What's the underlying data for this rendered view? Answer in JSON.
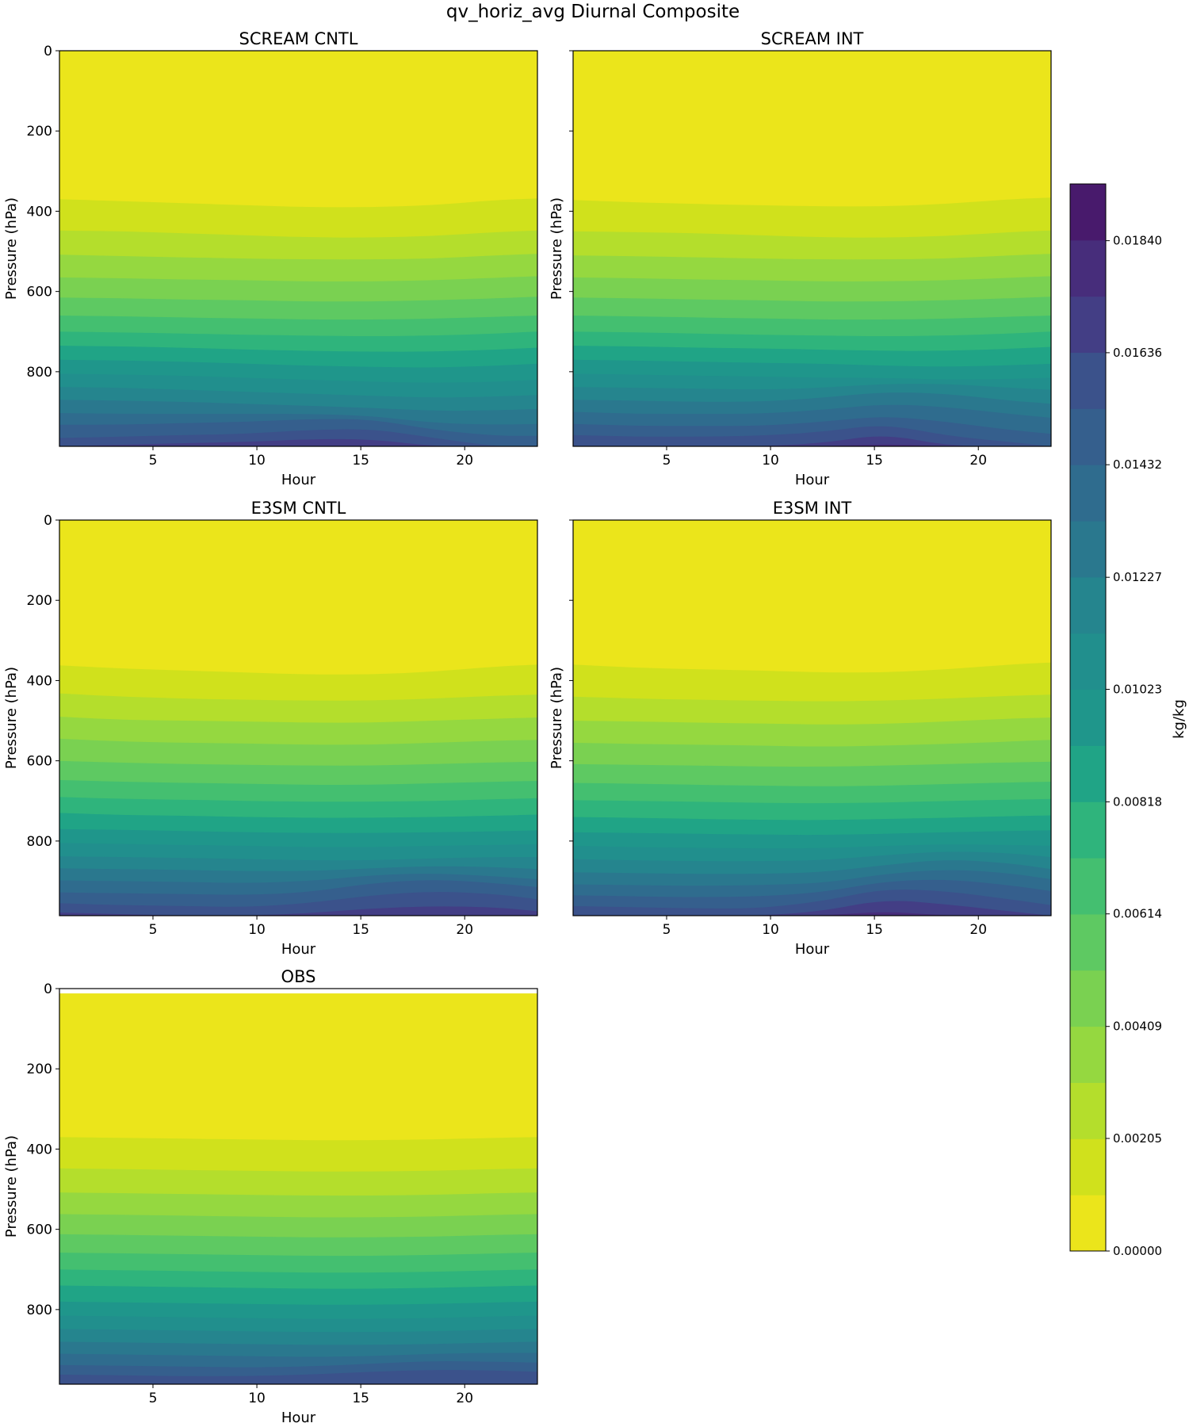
{
  "figure_title": "qv_horiz_avg Diurnal Composite",
  "colorbar": {
    "label": "kg/kg",
    "tick_labels": [
      "0.00000",
      "0.00205",
      "0.00409",
      "0.00614",
      "0.00818",
      "0.01023",
      "0.01227",
      "0.01432",
      "0.01636",
      "0.01840"
    ],
    "vmin": 0.0,
    "vmax": 0.019434,
    "levels": 19
  },
  "chart_data": [
    {
      "type": "heatmap",
      "title": "SCREAM CNTL",
      "xlabel": "Hour",
      "ylabel": "Pressure (hPa)",
      "xlim": [
        0.5,
        23.5
      ],
      "ylim": [
        986,
        0
      ],
      "xticks": [
        5,
        10,
        15,
        20
      ],
      "yticks": [
        0,
        200,
        400,
        600,
        800
      ],
      "hours": [
        0.5,
        3.5,
        6.5,
        9.5,
        12.5,
        15.5,
        18.5,
        21.5,
        23.5
      ],
      "contour_pressure_hpa": [
        [
          370,
          375,
          380,
          385,
          390,
          390,
          385,
          372,
          368
        ],
        [
          448,
          450,
          455,
          460,
          465,
          466,
          462,
          452,
          448
        ],
        [
          508,
          512,
          515,
          518,
          520,
          520,
          518,
          510,
          506
        ],
        [
          565,
          567,
          570,
          572,
          575,
          575,
          572,
          566,
          562
        ],
        [
          615,
          617,
          620,
          622,
          625,
          625,
          622,
          617,
          613
        ],
        [
          660,
          662,
          665,
          667,
          670,
          670,
          668,
          663,
          660
        ],
        [
          700,
          702,
          705,
          708,
          710,
          712,
          710,
          705,
          700
        ],
        [
          735,
          737,
          740,
          745,
          748,
          750,
          750,
          745,
          740
        ],
        [
          770,
          772,
          775,
          780,
          785,
          788,
          790,
          785,
          780
        ],
        [
          805,
          807,
          810,
          815,
          820,
          825,
          828,
          825,
          820
        ],
        [
          838,
          840,
          845,
          850,
          855,
          860,
          865,
          862,
          858
        ],
        [
          870,
          872,
          875,
          880,
          885,
          890,
          898,
          896,
          893
        ],
        [
          903,
          905,
          905,
          905,
          905,
          910,
          928,
          932,
          930
        ],
        [
          932,
          932,
          928,
          925,
          918,
          918,
          945,
          960,
          960
        ],
        [
          965,
          962,
          958,
          955,
          945,
          942,
          965,
          986,
          986
        ],
        [
          986,
          982,
          978,
          975,
          968,
          968,
          986,
          986,
          986
        ]
      ]
    },
    {
      "type": "heatmap",
      "title": "SCREAM INT",
      "xlabel": "Hour",
      "ylabel": "Pressure (hPa)",
      "xlim": [
        0.5,
        23.5
      ],
      "ylim": [
        986,
        0
      ],
      "xticks": [
        5,
        10,
        15,
        20
      ],
      "yticks": [
        0,
        200,
        400,
        600,
        800
      ],
      "hours": [
        0.5,
        3.5,
        6.5,
        9.5,
        12.5,
        15.5,
        18.5,
        21.5,
        23.5
      ],
      "contour_pressure_hpa": [
        [
          372,
          378,
          382,
          385,
          388,
          388,
          382,
          370,
          366
        ],
        [
          450,
          452,
          455,
          460,
          465,
          466,
          462,
          452,
          448
        ],
        [
          510,
          512,
          515,
          518,
          520,
          520,
          518,
          510,
          506
        ],
        [
          565,
          567,
          570,
          572,
          575,
          575,
          572,
          566,
          562
        ],
        [
          615,
          617,
          620,
          622,
          625,
          625,
          622,
          617,
          613
        ],
        [
          660,
          662,
          665,
          667,
          670,
          670,
          668,
          663,
          660
        ],
        [
          700,
          702,
          705,
          708,
          710,
          712,
          710,
          705,
          700
        ],
        [
          735,
          737,
          740,
          742,
          745,
          748,
          748,
          743,
          738
        ],
        [
          770,
          772,
          775,
          778,
          780,
          785,
          788,
          784,
          780
        ],
        [
          805,
          807,
          810,
          812,
          815,
          815,
          820,
          818,
          815
        ],
        [
          838,
          840,
          842,
          845,
          840,
          830,
          830,
          840,
          845
        ],
        [
          870,
          872,
          875,
          875,
          865,
          850,
          855,
          872,
          880
        ],
        [
          900,
          905,
          905,
          905,
          895,
          880,
          888,
          905,
          915
        ],
        [
          930,
          935,
          935,
          935,
          925,
          910,
          925,
          945,
          955
        ],
        [
          958,
          962,
          962,
          960,
          950,
          930,
          960,
          975,
          986
        ],
        [
          986,
          986,
          986,
          986,
          978,
          955,
          985,
          986,
          986
        ],
        [
          986,
          986,
          986,
          986,
          986,
          980,
          986,
          986,
          986
        ]
      ]
    },
    {
      "type": "heatmap",
      "title": "E3SM CNTL",
      "xlabel": "Hour",
      "ylabel": "Pressure (hPa)",
      "xlim": [
        0.5,
        23.5
      ],
      "ylim": [
        986,
        0
      ],
      "xticks": [
        5,
        10,
        15,
        20
      ],
      "yticks": [
        0,
        200,
        400,
        600,
        800
      ],
      "hours": [
        0.5,
        3.5,
        6.5,
        9.5,
        12.5,
        15.5,
        18.5,
        21.5,
        23.5
      ],
      "contour_pressure_hpa": [
        [
          362,
          370,
          375,
          380,
          385,
          385,
          378,
          365,
          360
        ],
        [
          432,
          440,
          445,
          448,
          450,
          450,
          445,
          438,
          435
        ],
        [
          490,
          498,
          500,
          502,
          505,
          505,
          500,
          495,
          492
        ],
        [
          545,
          552,
          555,
          557,
          560,
          560,
          555,
          550,
          548
        ],
        [
          600,
          605,
          608,
          610,
          612,
          612,
          608,
          604,
          602
        ],
        [
          648,
          652,
          655,
          657,
          660,
          660,
          656,
          652,
          650
        ],
        [
          690,
          695,
          697,
          700,
          702,
          702,
          700,
          696,
          693
        ],
        [
          730,
          735,
          737,
          740,
          742,
          742,
          740,
          737,
          734
        ],
        [
          770,
          772,
          775,
          778,
          780,
          780,
          778,
          776,
          773
        ],
        [
          805,
          807,
          810,
          812,
          815,
          815,
          812,
          810,
          808
        ],
        [
          838,
          840,
          842,
          845,
          848,
          848,
          843,
          840,
          840
        ],
        [
          868,
          870,
          872,
          875,
          875,
          868,
          862,
          865,
          870
        ],
        [
          898,
          900,
          902,
          905,
          900,
          885,
          880,
          888,
          895
        ],
        [
          928,
          930,
          932,
          935,
          928,
          905,
          895,
          905,
          915
        ],
        [
          955,
          960,
          962,
          965,
          955,
          935,
          925,
          932,
          945
        ],
        [
          978,
          982,
          986,
          986,
          980,
          968,
          962,
          965,
          975
        ]
      ]
    },
    {
      "type": "heatmap",
      "title": "E3SM INT",
      "xlabel": "Hour",
      "ylabel": "Pressure (hPa)",
      "xlim": [
        0.5,
        23.5
      ],
      "ylim": [
        986,
        0
      ],
      "xticks": [
        5,
        10,
        15,
        20
      ],
      "yticks": [
        0,
        200,
        400,
        600,
        800
      ],
      "hours": [
        0.5,
        3.5,
        6.5,
        9.5,
        12.5,
        15.5,
        18.5,
        21.5,
        23.5
      ],
      "contour_pressure_hpa": [
        [
          360,
          368,
          372,
          375,
          380,
          380,
          372,
          360,
          355
        ],
        [
          440,
          445,
          448,
          450,
          452,
          450,
          445,
          438,
          435
        ],
        [
          500,
          502,
          505,
          507,
          510,
          508,
          502,
          495,
          492
        ],
        [
          555,
          558,
          560,
          562,
          565,
          562,
          558,
          552,
          548
        ],
        [
          608,
          610,
          612,
          614,
          615,
          612,
          608,
          604,
          602
        ],
        [
          655,
          657,
          660,
          662,
          664,
          662,
          658,
          654,
          652
        ],
        [
          698,
          700,
          702,
          705,
          706,
          704,
          700,
          697,
          695
        ],
        [
          740,
          742,
          745,
          747,
          748,
          745,
          742,
          738,
          736
        ],
        [
          778,
          780,
          782,
          784,
          785,
          782,
          778,
          775,
          773
        ],
        [
          812,
          815,
          817,
          818,
          818,
          812,
          808,
          810,
          812
        ],
        [
          845,
          848,
          850,
          850,
          848,
          835,
          825,
          830,
          840
        ],
        [
          878,
          880,
          882,
          882,
          878,
          860,
          845,
          855,
          870
        ],
        [
          908,
          910,
          912,
          910,
          905,
          882,
          870,
          880,
          895
        ],
        [
          935,
          938,
          940,
          938,
          928,
          900,
          895,
          910,
          925
        ],
        [
          962,
          965,
          968,
          968,
          950,
          918,
          925,
          945,
          960
        ],
        [
          986,
          986,
          986,
          986,
          975,
          945,
          958,
          975,
          986
        ],
        [
          986,
          986,
          986,
          986,
          986,
          975,
          986,
          986,
          986
        ]
      ]
    },
    {
      "type": "heatmap",
      "title": "OBS",
      "xlabel": "Hour",
      "ylabel": "Pressure (hPa)",
      "xlim": [
        0.5,
        23.5
      ],
      "ylim": [
        986,
        0
      ],
      "xticks": [
        5,
        10,
        15,
        20
      ],
      "yticks": [
        0,
        200,
        400,
        600,
        800
      ],
      "top_pressure_hpa": 12,
      "hours": [
        0.5,
        3.5,
        6.5,
        9.5,
        12.5,
        15.5,
        18.5,
        21.5,
        23.5
      ],
      "contour_pressure_hpa": [
        [
          370,
          372,
          374,
          376,
          378,
          378,
          376,
          372,
          370
        ],
        [
          448,
          450,
          452,
          454,
          456,
          456,
          454,
          450,
          448
        ],
        [
          508,
          510,
          512,
          514,
          516,
          516,
          514,
          510,
          508
        ],
        [
          562,
          564,
          566,
          568,
          570,
          570,
          568,
          564,
          562
        ],
        [
          612,
          614,
          616,
          618,
          620,
          620,
          618,
          614,
          612
        ],
        [
          658,
          660,
          662,
          664,
          666,
          666,
          664,
          660,
          658
        ],
        [
          700,
          702,
          704,
          706,
          708,
          708,
          706,
          702,
          700
        ],
        [
          740,
          742,
          744,
          746,
          748,
          748,
          746,
          742,
          740
        ],
        [
          780,
          782,
          784,
          786,
          788,
          788,
          786,
          782,
          780
        ],
        [
          815,
          817,
          819,
          821,
          823,
          823,
          821,
          817,
          815
        ],
        [
          848,
          850,
          852,
          854,
          856,
          856,
          854,
          850,
          848
        ],
        [
          880,
          882,
          884,
          886,
          888,
          888,
          886,
          882,
          880
        ],
        [
          910,
          912,
          914,
          916,
          918,
          916,
          910,
          908,
          908
        ],
        [
          938,
          940,
          942,
          944,
          942,
          935,
          928,
          930,
          932
        ],
        [
          962,
          964,
          966,
          966,
          962,
          955,
          950,
          952,
          955
        ]
      ]
    }
  ]
}
